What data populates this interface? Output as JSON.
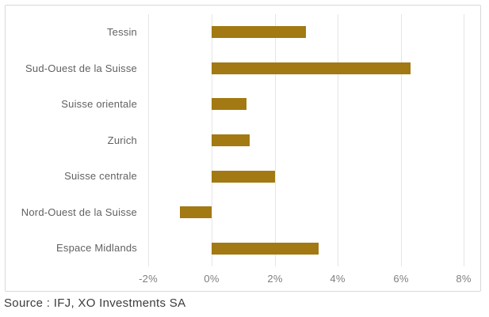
{
  "source": "Source : IFJ, XO Investments SA",
  "colors": {
    "bar": "#a27912",
    "gridline": "#e6e6e6",
    "card_border": "#d8d8d8",
    "category_label": "#616161",
    "tick_label": "#7f7f7f",
    "source_text": "#3c3c3c",
    "background": "#ffffff"
  },
  "chart_data": {
    "type": "bar",
    "orientation": "horizontal",
    "title": "",
    "xlabel": "",
    "ylabel": "",
    "categories": [
      "Tessin",
      "Sud-Ouest de la Suisse",
      "Suisse orientale",
      "Zurich",
      "Suisse centrale",
      "Nord-Ouest de la Suisse",
      "Espace Midlands"
    ],
    "values": [
      3.0,
      6.3,
      1.1,
      1.2,
      2.0,
      -1.0,
      3.4
    ],
    "unit": "%",
    "x_ticks": [
      "-2%",
      "0%",
      "2%",
      "4%",
      "6%",
      "8%"
    ],
    "x_tick_values": [
      -2,
      0,
      2,
      4,
      6,
      8
    ],
    "xlim": [
      -2,
      8.55
    ],
    "grid": true,
    "legend": false
  }
}
